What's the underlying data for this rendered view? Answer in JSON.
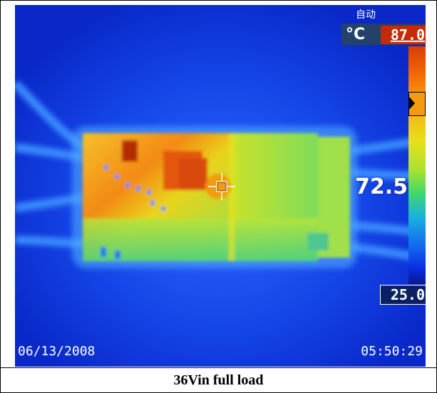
{
  "thermal_image": {
    "mode_label": "自动",
    "unit_label": "°C",
    "max_temp": "87.0",
    "min_temp": "25.0",
    "spot_temp": "72.5",
    "date": "06/13/2008",
    "time": "05:50:29",
    "palette_colors": [
      "#d83c05",
      "#f26a05",
      "#f7a90f",
      "#e9e018",
      "#a8e32e",
      "#3fd66f",
      "#1ab0e0",
      "#1469ef",
      "#0a2adf"
    ]
  },
  "caption": "36Vin full load"
}
